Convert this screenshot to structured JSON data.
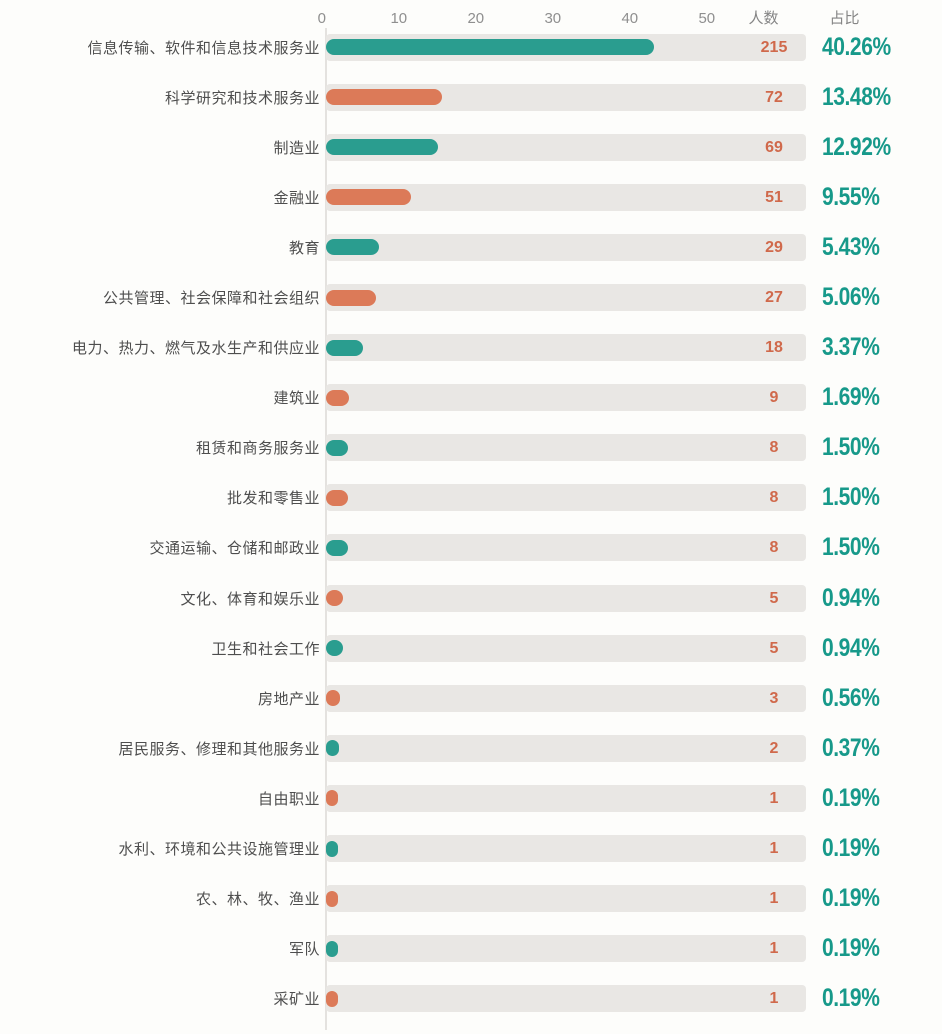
{
  "header": {
    "col_count": "人数",
    "col_pct": "占比"
  },
  "colors": {
    "teal_bar": "#2a9d8f",
    "orange_bar": "#dc7a58",
    "count_text": "#d0694b",
    "percent_text": "#17998a",
    "track": "#e9e7e4",
    "background": "#fdfdfb"
  },
  "chart_data": {
    "type": "bar",
    "orientation": "horizontal",
    "title": "",
    "xlabel": "",
    "ylabel": "",
    "axis_ticks": [
      0,
      10,
      20,
      30,
      40,
      50
    ],
    "xlim": [
      0,
      50
    ],
    "grid": false,
    "legend": "none",
    "bar_color_pattern": [
      "teal",
      "orange"
    ],
    "categories": [
      "信息传输、软件和信息技术服务业",
      "科学研究和技术服务业",
      "制造业",
      "金融业",
      "教育",
      "公共管理、社会保障和社会组织",
      "电力、热力、燃气及水生产和供应业",
      "建筑业",
      "租赁和商务服务业",
      "批发和零售业",
      "交通运输、仓储和邮政业",
      "文化、体育和娱乐业",
      "卫生和社会工作",
      "房地产业",
      "居民服务、修理和其他服务业",
      "自由职业",
      "水利、环境和公共设施管理业",
      "农、林、牧、渔业",
      "军队",
      "采矿业"
    ],
    "series": [
      {
        "name": "人数",
        "values": [
          215,
          72,
          69,
          51,
          29,
          27,
          18,
          9,
          8,
          8,
          8,
          5,
          5,
          3,
          2,
          1,
          1,
          1,
          1,
          1
        ]
      },
      {
        "name": "占比",
        "values": [
          "40.26%",
          "13.48%",
          "12.92%",
          "9.55%",
          "5.43%",
          "5.06%",
          "3.37%",
          "1.69%",
          "1.50%",
          "1.50%",
          "1.50%",
          "0.94%",
          "0.94%",
          "0.56%",
          "0.37%",
          "0.19%",
          "0.19%",
          "0.19%",
          "0.19%",
          "0.19%"
        ]
      }
    ]
  }
}
